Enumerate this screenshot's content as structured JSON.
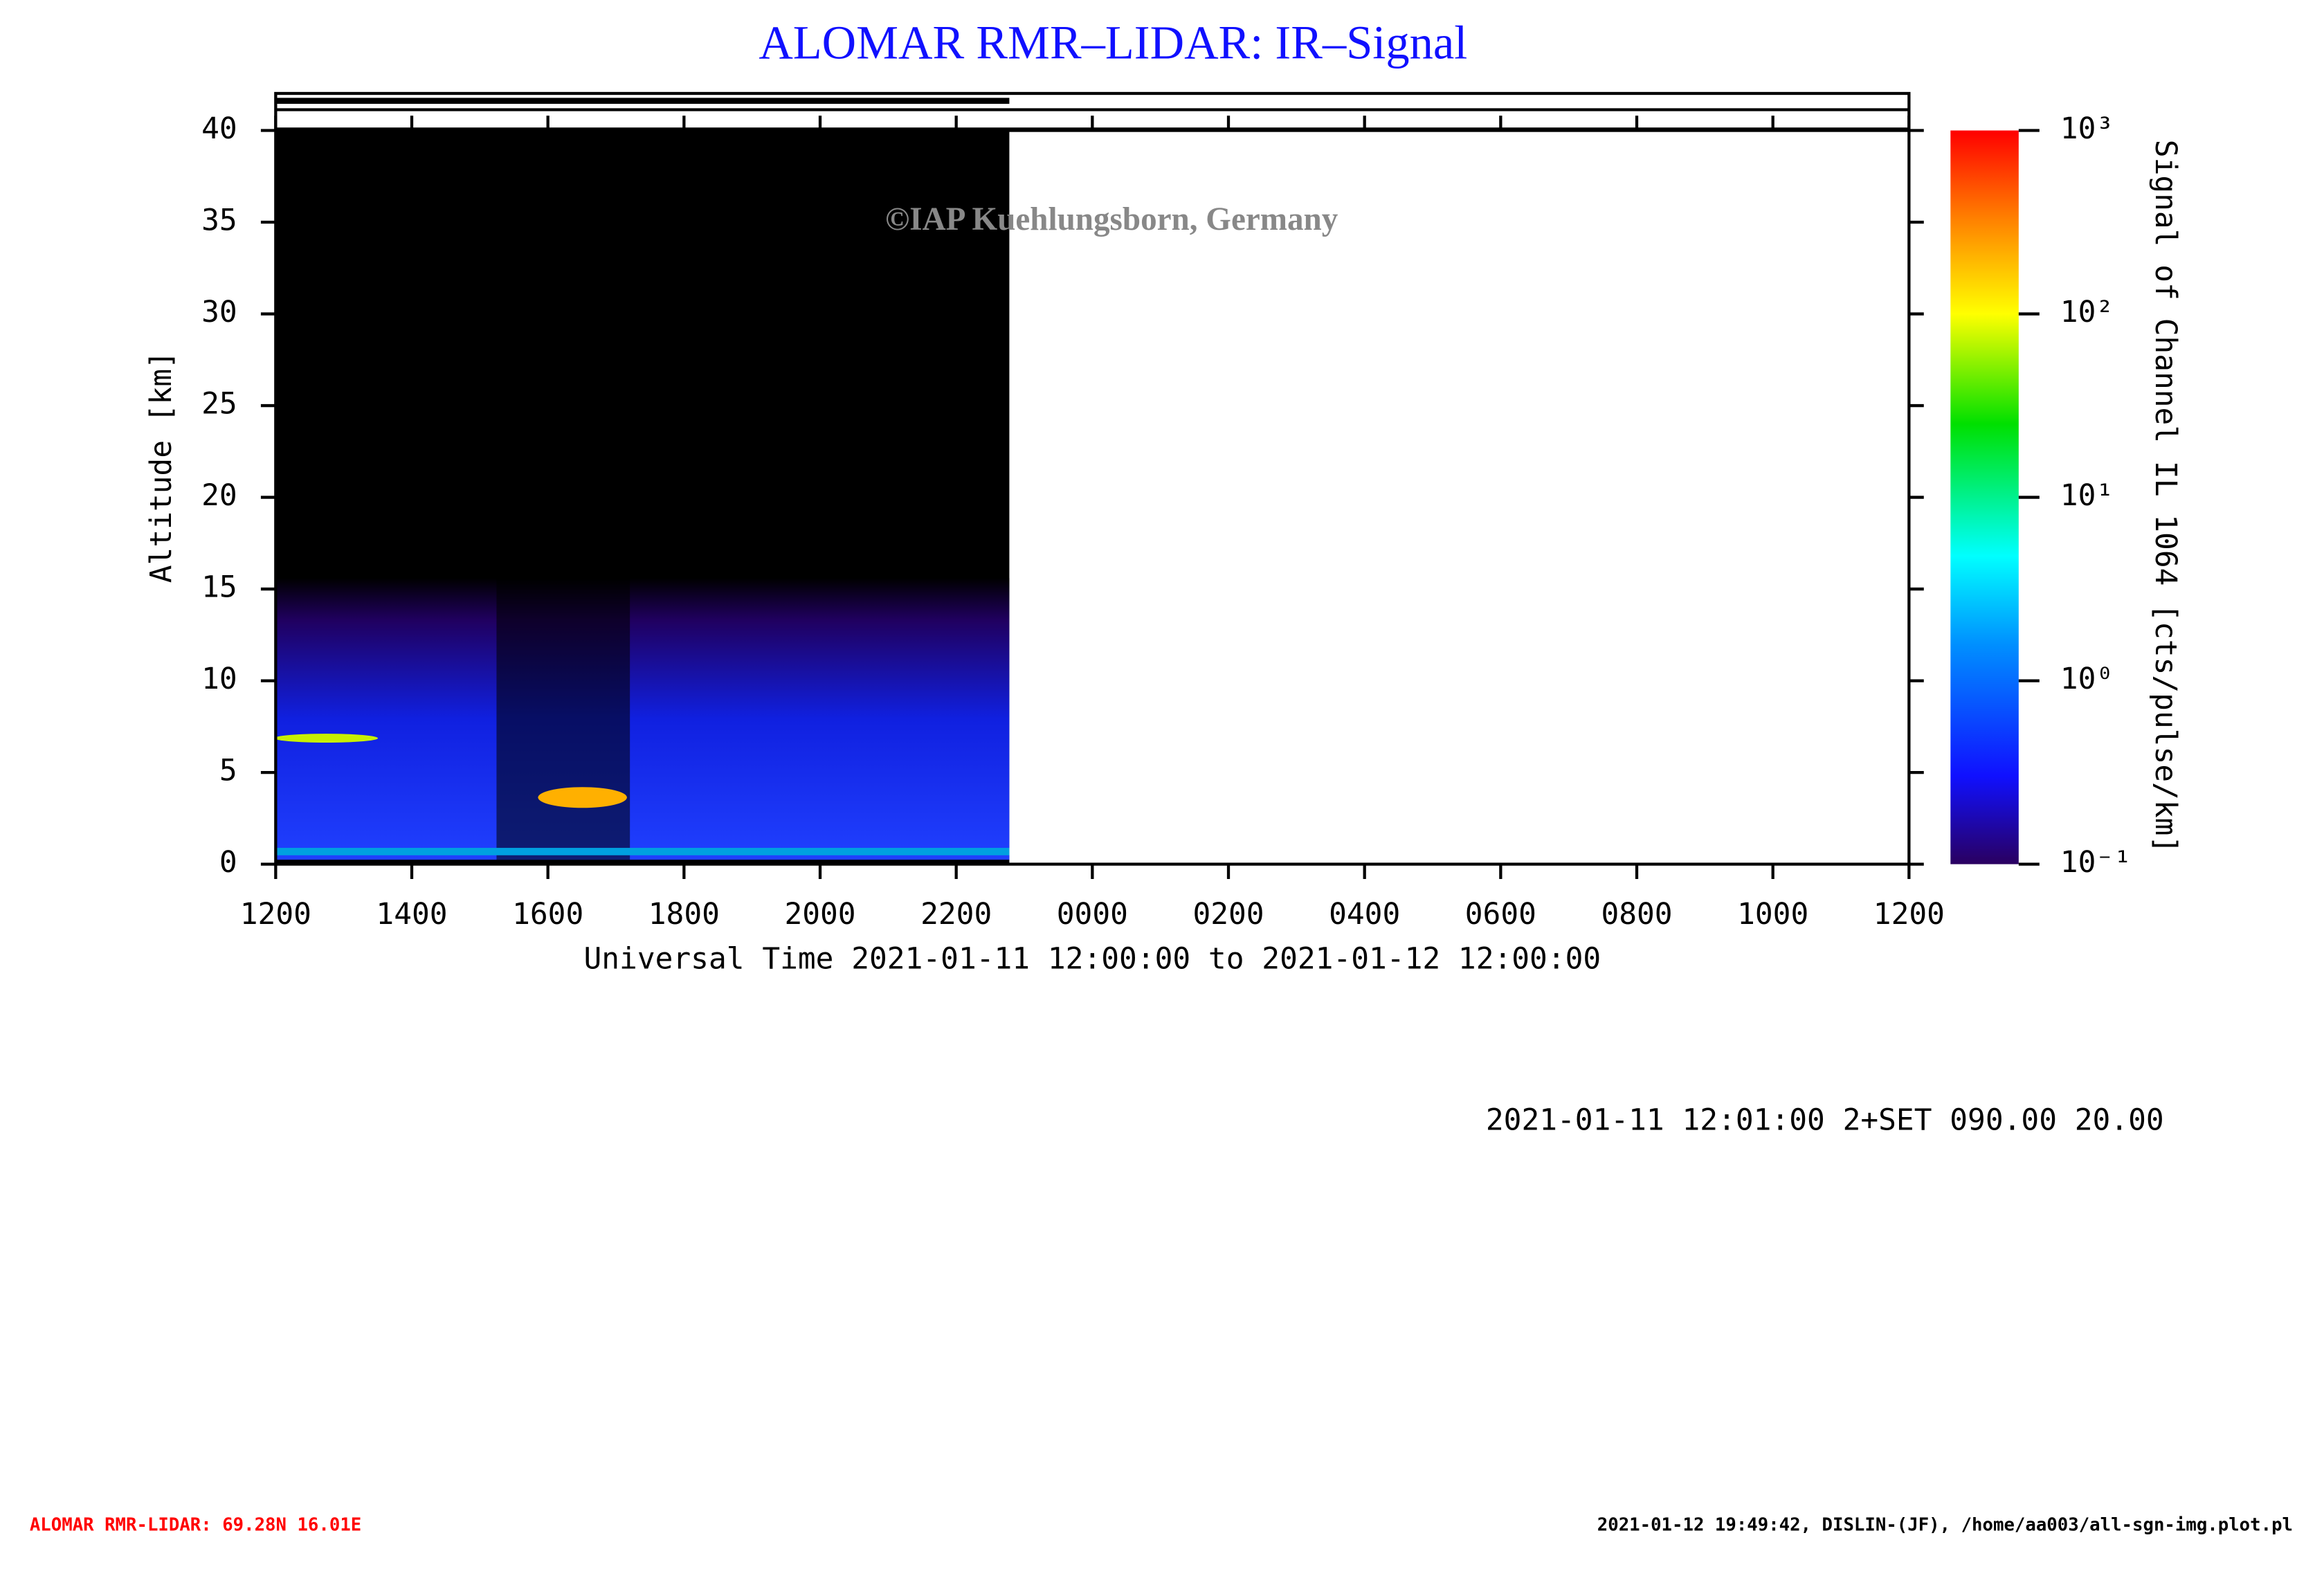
{
  "chart_data": {
    "type": "heatmap",
    "title": "ALOMAR RMR–LIDAR: IR–Signal",
    "watermark": "©IAP Kuehlungsborn, Germany",
    "xlabel": "Universal Time 2021-01-11 12:00:00 to 2021-01-12 12:00:00",
    "ylabel": "Altitude [km]",
    "colorbar_label": "Signal of Channel IL 1064 [cts/pulse/km]",
    "xlim": [
      12,
      36
    ],
    "xticks": [
      {
        "value": 12,
        "label": "1200"
      },
      {
        "value": 14,
        "label": "1400"
      },
      {
        "value": 16,
        "label": "1600"
      },
      {
        "value": 18,
        "label": "1800"
      },
      {
        "value": 20,
        "label": "2000"
      },
      {
        "value": 22,
        "label": "2200"
      },
      {
        "value": 24,
        "label": "0000"
      },
      {
        "value": 26,
        "label": "0200"
      },
      {
        "value": 28,
        "label": "0400"
      },
      {
        "value": 30,
        "label": "0600"
      },
      {
        "value": 32,
        "label": "0800"
      },
      {
        "value": 34,
        "label": "1000"
      },
      {
        "value": 36,
        "label": "1200"
      }
    ],
    "ylim": [
      0,
      40
    ],
    "yticks": [
      0,
      5,
      10,
      15,
      20,
      25,
      30,
      35,
      40
    ],
    "color_scale": "log",
    "clim": [
      0.1,
      1000
    ],
    "cticks": [
      {
        "value": 0.1,
        "label": "10⁻¹"
      },
      {
        "value": 1,
        "label": "10⁰"
      },
      {
        "value": 10,
        "label": "10¹"
      },
      {
        "value": 100,
        "label": "10²"
      },
      {
        "value": 1000,
        "label": "10³"
      }
    ],
    "info": "2021-01-11 12:01:00 2+SET 090.00 20.00",
    "footer_left": "ALOMAR RMR-LIDAR: 69.28N 16.01E",
    "footer_right": "2021-01-12 19:49:42, DISLIN-(JF), /home/aa003/all-sgn-img.plot.pl"
  }
}
